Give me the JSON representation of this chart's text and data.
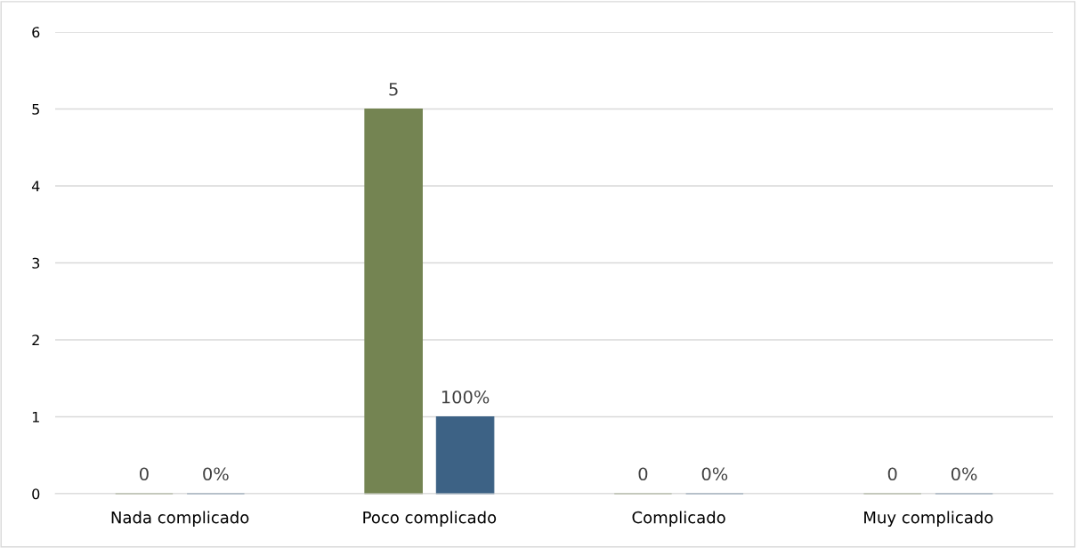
{
  "chart_data": {
    "type": "bar",
    "categories": [
      "Nada complicado",
      "Poco complicado",
      "Complicado",
      "Muy complicado"
    ],
    "series": [
      {
        "color": "#748452",
        "values": [
          0,
          5,
          0,
          0
        ],
        "value_labels": [
          "0",
          "5",
          "0",
          "0"
        ]
      },
      {
        "color": "#3d6285",
        "values": [
          0,
          1,
          0,
          0
        ],
        "value_labels": [
          "0%",
          "100%",
          "0%",
          "0%"
        ]
      }
    ],
    "ylim": [
      0,
      6
    ],
    "yticks": [
      0,
      1,
      2,
      3,
      4,
      5,
      6
    ],
    "grid": "y",
    "legend": false
  }
}
